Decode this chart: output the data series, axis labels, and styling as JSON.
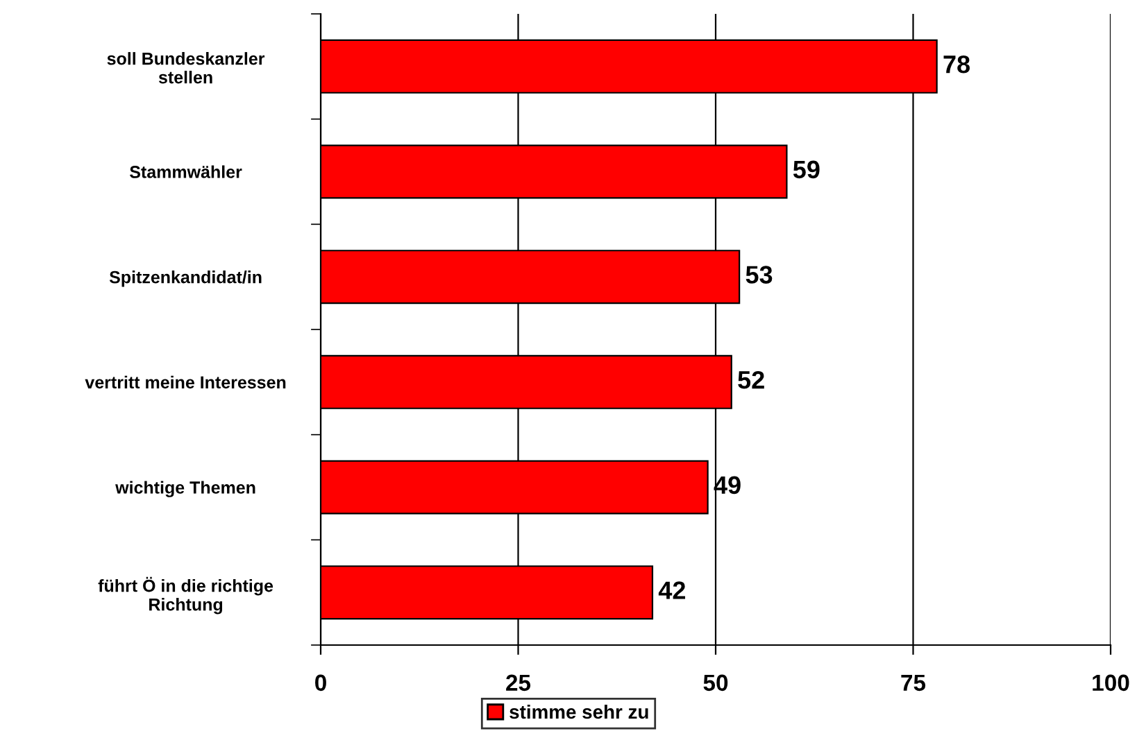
{
  "chart_data": {
    "type": "bar",
    "orientation": "horizontal",
    "categories": [
      "soll Bundeskanzler\nstellen",
      "Stammwähler",
      "Spitzenkandidat/in",
      "vertritt meine Interessen",
      "wichtige Themen",
      "führt Ö in die richtige\nRichtung"
    ],
    "series": [
      {
        "name": "stimme sehr zu",
        "color": "#ff0000",
        "values": [
          78,
          59,
          53,
          52,
          49,
          42
        ]
      }
    ],
    "xlim": [
      0,
      100
    ],
    "xticks": [
      0,
      25,
      50,
      75,
      100
    ],
    "grid": "x",
    "legend": "bottom",
    "data_labels": true
  }
}
